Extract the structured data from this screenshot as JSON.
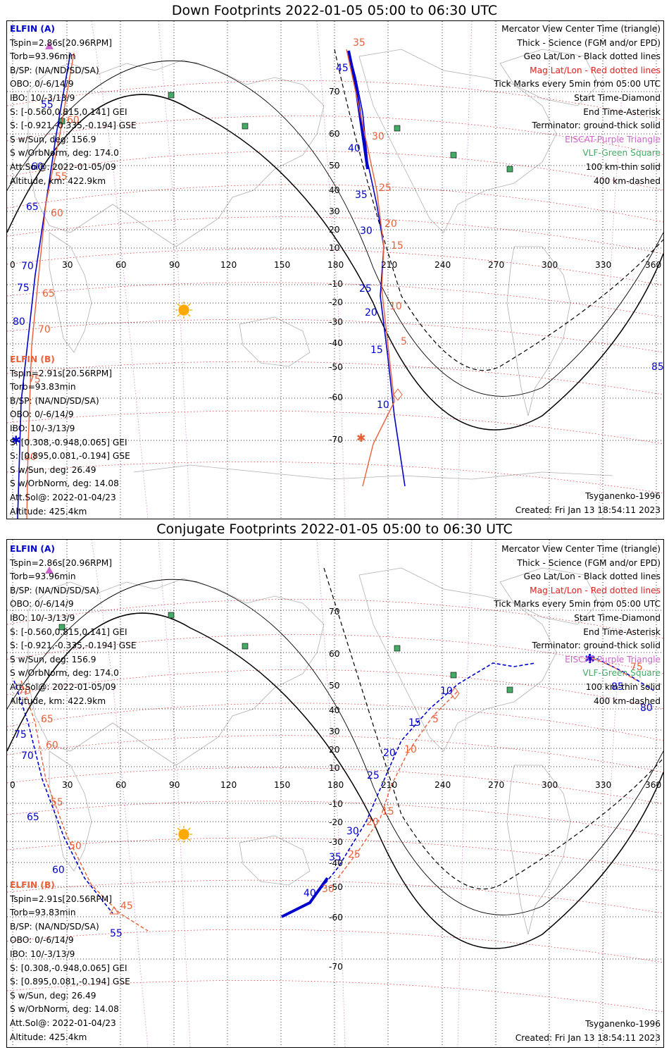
{
  "panels": [
    {
      "title": "Down Footprints 2022-01-05 05:00 to 06:30 UTC",
      "footer_model": "Tsyganenko-1996",
      "footer_created": "Created: Fri Jan 13 18:54:11 2023"
    },
    {
      "title": "Conjugate Footprints 2022-01-05 05:00 to 06:30 UTC",
      "footer_model": "Tsyganenko-1996",
      "footer_created": "Created: Fri Jan 13 18:54:11 2023"
    }
  ],
  "elfin_a": {
    "label": "ELFIN (A)",
    "lines": [
      "Tspin=2.86s[20.96RPM]",
      "Torb=93.96min",
      "B/SP: (NA/ND/SD/SA)",
      "OBO: 0/-6/14/9",
      "IBO: 10/-3/13/9",
      "S: [-0.560,0.815,0.141] GEI",
      "S: [-0.921,-0.335,-0.194] GSE",
      "S w/Sun, deg: 156.9",
      "S w/OrbNorm, deg: 174.0",
      "Att.Sol@: 2022-01-05/09",
      "Altitude, km: 422.9km"
    ]
  },
  "elfin_b": {
    "label": "ELFIN (B)",
    "lines": [
      "Tspin=2.91s[20.56RPM]",
      "Torb=93.83min",
      "B/SP: (NA/ND/SD/SA)",
      "OBO: 0/-6/14/9",
      "IBO: 10/-3/13/9",
      "S: [0.308,-0.948,0.065] GEI",
      "S: [0.895,0.081,-0.194] GSE",
      "S w/Sun, deg: 26.49",
      "S w/OrbNorm, deg: 14.08",
      "Att.Sol@: 2022-01-04/23",
      "Altitude: 425.4km"
    ]
  },
  "legend": [
    {
      "text": "Mercator View Center Time (triangle)",
      "color": "#000000"
    },
    {
      "text": "Thick - Science (FGM and/or EPD)",
      "color": "#000000"
    },
    {
      "text": "Geo Lat/Lon - Black dotted lines",
      "color": "#000000"
    },
    {
      "text": "Mag Lat/Lon - Red dotted lines",
      "color": "#dd2222"
    },
    {
      "text": "Tick Marks every 5min from 05:00 UTC",
      "color": "#000000"
    },
    {
      "text": "Start Time-Diamond",
      "color": "#000000"
    },
    {
      "text": "End Time-Asterisk",
      "color": "#000000"
    },
    {
      "text": "Terminator: ground-thick solid",
      "color": "#000000"
    },
    {
      "text": "EISCAT-Purple Triangle",
      "color": "#cc66cc"
    },
    {
      "text": "VLF-Green Square",
      "color": "#44aa66"
    },
    {
      "text": "100 km-thin solid",
      "color": "#000000"
    },
    {
      "text": "400 km-dashed",
      "color": "#000000"
    }
  ],
  "axes": {
    "lon_ticks": [
      "0",
      "30",
      "60",
      "90",
      "120",
      "150",
      "180",
      "210",
      "240",
      "270",
      "300",
      "330",
      "360"
    ],
    "lat_ticks": [
      "70",
      "60",
      "50",
      "40",
      "30",
      "20",
      "10",
      "-10",
      "-20",
      "-30",
      "-40",
      "-50",
      "-60",
      "-70"
    ]
  },
  "down_labels": {
    "a_blue": [
      "45",
      "40",
      "35",
      "30",
      "25",
      "20",
      "15",
      "10",
      "55",
      "60",
      "65",
      "70",
      "75",
      "80",
      "85"
    ],
    "b_red": [
      "35",
      "30",
      "25",
      "20",
      "15",
      "10",
      "5",
      "60",
      "55",
      "60",
      "65",
      "70",
      "75",
      "80"
    ]
  },
  "conj_labels": {
    "a_blue": [
      "10",
      "15",
      "20",
      "25",
      "30",
      "35",
      "40",
      "55",
      "60",
      "65",
      "70",
      "75",
      "80",
      "85"
    ],
    "b_red": [
      "5",
      "10",
      "15",
      "20",
      "25",
      "30",
      "45",
      "50",
      "55",
      "60",
      "65",
      "70",
      "75"
    ]
  },
  "colors": {
    "elfin_a": "#0000cc",
    "elfin_b": "#e8603a",
    "mag_grid": "#dd2222",
    "eiscat": "#cc66cc",
    "vlf": "#44aa66",
    "sun": "#ffaa00"
  }
}
